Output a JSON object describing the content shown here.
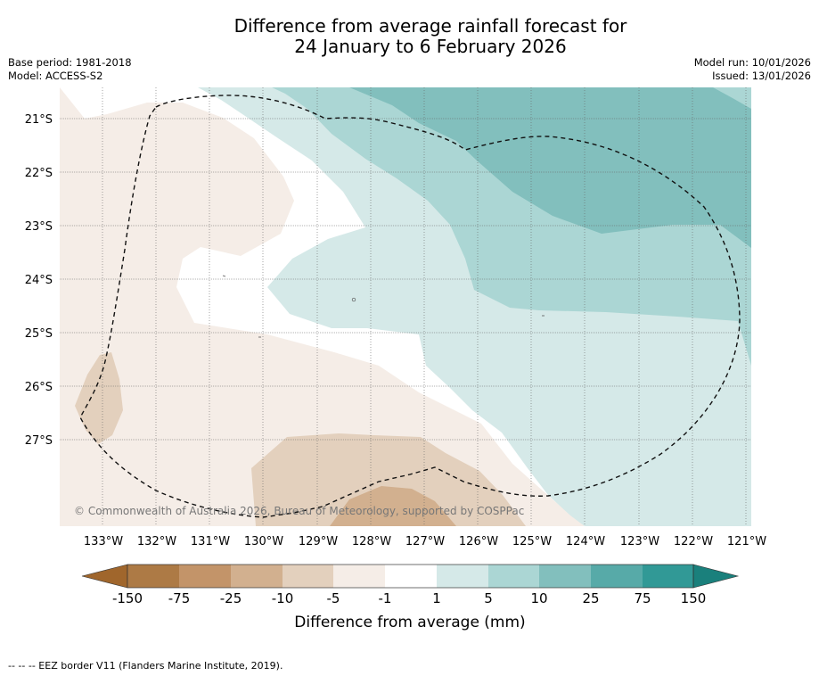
{
  "header": {
    "title_line1": "Difference from average rainfall forecast for",
    "title_line2": "24 January to 6 February 2026",
    "base_period": "Base period: 1981-2018",
    "model": "Model: ACCESS-S2",
    "model_run": "Model run: 10/01/2026",
    "issued": "Issued: 13/01/2026"
  },
  "map": {
    "lat_labels": [
      "21°S",
      "22°S",
      "23°S",
      "24°S",
      "25°S",
      "26°S",
      "27°S"
    ],
    "lon_labels": [
      "133°W",
      "132°W",
      "131°W",
      "130°W",
      "129°W",
      "128°W",
      "127°W",
      "126°W",
      "125°W",
      "124°W",
      "123°W",
      "122°W",
      "121°W"
    ],
    "copyright": "© Commonwealth of Australia 2026, Bureau of Meteorology, supported by COSPPac"
  },
  "legend": {
    "labels": [
      "-150",
      "-75",
      "-25",
      "-10",
      "-5",
      "-1",
      "1",
      "5",
      "10",
      "25",
      "75",
      "150"
    ],
    "colors": [
      "#a0662c",
      "#ad7a45",
      "#c39469",
      "#d2b08f",
      "#e3d0bd",
      "#f5ede7",
      "#ffffff",
      "#d5e9e8",
      "#abd6d4",
      "#82bfbd",
      "#57aaa8",
      "#319996",
      "#1a807c"
    ],
    "title": "Difference from average (mm)"
  },
  "footnote": "--  --  -- EEZ border V11 (Flanders Marine Institute, 2019)."
}
